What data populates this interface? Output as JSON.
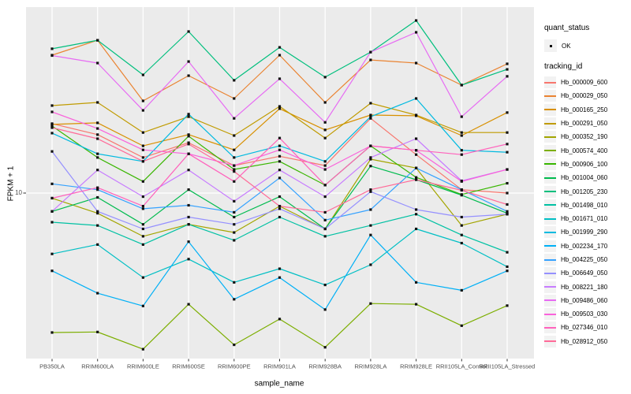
{
  "figure": {
    "background": "#FFFFFF",
    "panel_background": "#EBEBEB",
    "gridline_color": "#FFFFFF",
    "point_color": "#111111",
    "tick_label_color": "#4d4d4d"
  },
  "axes": {
    "y_title": "FPKM + 1",
    "x_title": "sample_name",
    "y_tick_label": "10"
  },
  "legend": {
    "quant_status_title": "quant_status",
    "quant_status_value": "OK",
    "tracking_title": "tracking_id"
  },
  "chart_data": {
    "type": "line",
    "title": "",
    "xlabel": "sample_name",
    "ylabel": "FPKM + 1",
    "y_scale": "log10",
    "y_ticks": [
      10
    ],
    "grid": "vertical-major-plus-y10",
    "legend_position": "right",
    "point_shape": "small black square (quant_status OK)",
    "categories": [
      "PB350LA",
      "RRIM600LA",
      "RRIM600LE",
      "RRIM600SE",
      "RRIM600PE",
      "RRIM901LA",
      "RRIM928BA",
      "RRIM928LA",
      "RRIM928LE",
      "RRII105LA_Control",
      "RRII105LA_Stressed"
    ],
    "series": [
      {
        "name": "Hb_000009_600",
        "color": "#F8766D",
        "values": [
          26.9,
          23.0,
          16.6,
          20.5,
          14.8,
          16.9,
          14.8,
          29.0,
          17.3,
          10.5,
          10.0
        ]
      },
      {
        "name": "Hb_000029_050",
        "color": "#EA8331",
        "values": [
          71.4,
          88.3,
          37.2,
          53.3,
          38.5,
          71.4,
          36.4,
          66.7,
          63.8,
          46.6,
          63.1
        ]
      },
      {
        "name": "Hb_000165_250",
        "color": "#D89000",
        "values": [
          26.6,
          27.2,
          19.6,
          23.0,
          18.5,
          33.3,
          24.6,
          30.4,
          30.1,
          22.7,
          31.5
        ]
      },
      {
        "name": "Hb_000291_050",
        "color": "#C09B00",
        "values": [
          34.8,
          36.4,
          23.7,
          29.7,
          22.7,
          34.4,
          21.9,
          36.0,
          30.4,
          23.7,
          23.7
        ]
      },
      {
        "name": "Hb_000352_190",
        "color": "#A3A500",
        "values": [
          9.3,
          7.5,
          5.4,
          6.4,
          5.7,
          8.3,
          6.0,
          16.2,
          14.3,
          6.3,
          7.4
        ]
      },
      {
        "name": "Hb_000574_400",
        "color": "#7CAE00",
        "values": [
          1.37,
          1.38,
          1.08,
          2.05,
          1.15,
          1.66,
          1.11,
          2.07,
          2.05,
          1.51,
          2.01
        ]
      },
      {
        "name": "Hb_000906_100",
        "color": "#39B600",
        "values": [
          26.0,
          16.6,
          11.8,
          22.5,
          14.0,
          15.7,
          11.2,
          19.6,
          12.5,
          9.8,
          11.5
        ]
      },
      {
        "name": "Hb_001004_060",
        "color": "#00BB4E",
        "values": [
          7.7,
          9.4,
          6.4,
          10.5,
          7.1,
          9.5,
          6.0,
          14.7,
          12.1,
          9.7,
          7.5
        ]
      },
      {
        "name": "Hb_001205_230",
        "color": "#00BF7D",
        "values": [
          78.2,
          88.3,
          53.9,
          100.0,
          49.9,
          79.8,
          52.2,
          74.6,
          117.0,
          46.6,
          58.3
        ]
      },
      {
        "name": "Hb_001498_010",
        "color": "#00C1A3",
        "values": [
          6.6,
          6.3,
          4.8,
          6.4,
          5.1,
          7.1,
          5.4,
          6.3,
          7.4,
          5.5,
          4.3
        ]
      },
      {
        "name": "Hb_001671_010",
        "color": "#00BFC4",
        "values": [
          4.2,
          4.8,
          3.0,
          3.9,
          2.8,
          3.4,
          2.7,
          3.6,
          6.0,
          4.9,
          3.5
        ]
      },
      {
        "name": "Hb_001999_290",
        "color": "#00BAE0",
        "values": [
          23.5,
          17.5,
          15.7,
          30.8,
          16.6,
          19.6,
          15.7,
          29.7,
          38.5,
          18.4,
          17.9
        ]
      },
      {
        "name": "Hb_002234_170",
        "color": "#00B0F6",
        "values": [
          3.3,
          2.4,
          2.0,
          5.0,
          2.2,
          3.0,
          1.9,
          5.5,
          2.8,
          2.5,
          3.3
        ]
      },
      {
        "name": "Hb_004225_050",
        "color": "#35A2FF",
        "values": [
          11.4,
          10.5,
          8.0,
          8.4,
          7.6,
          12.4,
          6.8,
          7.9,
          14.3,
          10.5,
          7.7
        ]
      },
      {
        "name": "Hb_006649_050",
        "color": "#9590FF",
        "values": [
          18.1,
          7.7,
          6.0,
          7.1,
          6.4,
          8.0,
          6.0,
          10.2,
          7.9,
          7.1,
          7.4
        ]
      },
      {
        "name": "Hb_008221_180",
        "color": "#C77CFF",
        "values": [
          7.7,
          13.9,
          9.5,
          13.9,
          8.9,
          13.9,
          9.5,
          16.6,
          21.7,
          11.9,
          14.0
        ]
      },
      {
        "name": "Hb_009486_060",
        "color": "#E76BF3",
        "values": [
          71.0,
          63.8,
          32.5,
          65.2,
          29.0,
          51.0,
          27.4,
          74.6,
          98.9,
          29.7,
          52.8
        ]
      },
      {
        "name": "Hb_009503_030",
        "color": "#FA62DB",
        "values": [
          31.8,
          25.1,
          18.5,
          17.5,
          14.8,
          18.5,
          14.0,
          19.6,
          18.4,
          11.8,
          14.0
        ]
      },
      {
        "name": "Hb_027346_010",
        "color": "#FF62BC",
        "values": [
          9.3,
          10.8,
          8.3,
          17.5,
          11.8,
          21.9,
          11.2,
          19.6,
          18.4,
          17.3,
          20.1
        ]
      },
      {
        "name": "Hb_028912_050",
        "color": "#FF6A98",
        "values": [
          25.4,
          21.7,
          15.7,
          20.1,
          13.6,
          8.3,
          7.6,
          10.5,
          12.1,
          10.4,
          8.5
        ]
      }
    ]
  }
}
